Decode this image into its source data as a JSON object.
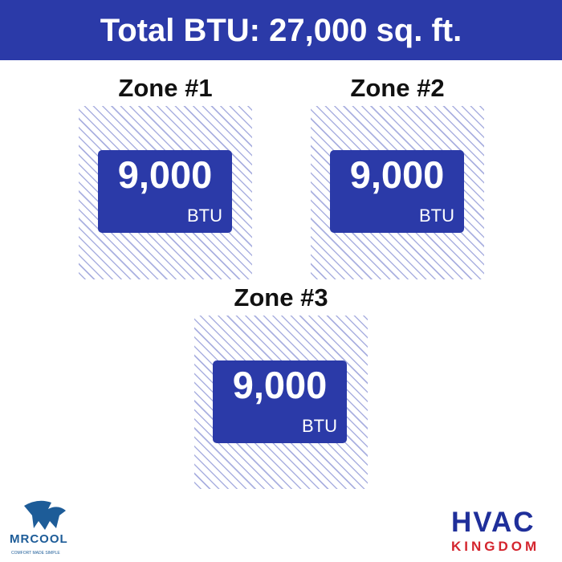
{
  "header": {
    "title": "Total BTU: 27,000 sq. ft."
  },
  "zones": [
    {
      "title": "Zone #1",
      "value": "9,000",
      "unit": "BTU"
    },
    {
      "title": "Zone #2",
      "value": "9,000",
      "unit": "BTU"
    },
    {
      "title": "Zone #3",
      "value": "9,000",
      "unit": "BTU"
    }
  ],
  "logos": {
    "left": {
      "name": "MRCOOL",
      "tagline": "COMFORT MADE SIMPLE"
    },
    "right": {
      "line1": "HVAC",
      "line2": "KINGDOM"
    }
  },
  "colors": {
    "brand": "#2b3aa8",
    "hatch": "#aab0e0",
    "accent_red": "#d4252e"
  }
}
